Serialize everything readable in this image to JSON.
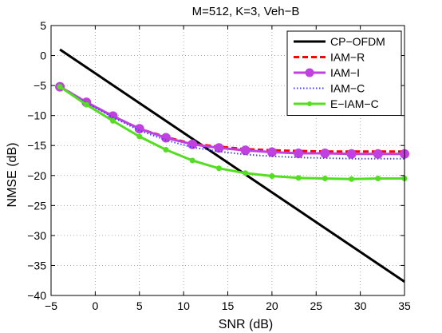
{
  "chart_data": {
    "type": "line",
    "title": "M=512, K=3, Veh−B",
    "xlabel": "SNR (dB)",
    "ylabel": "NMSE (dB)",
    "xlim": [
      -5,
      35
    ],
    "ylim": [
      -40,
      5
    ],
    "xticks": [
      -5,
      0,
      5,
      10,
      15,
      20,
      25,
      30,
      35
    ],
    "xtick_labels": [
      "−5",
      "0",
      "5",
      "10",
      "15",
      "20",
      "25",
      "30",
      "35"
    ],
    "yticks": [
      5,
      0,
      -5,
      -10,
      -15,
      -20,
      -25,
      -30,
      -35,
      -40
    ],
    "ytick_labels": [
      "5",
      "0",
      "−5",
      "−10",
      "−15",
      "−20",
      "−25",
      "−30",
      "−35",
      "−40"
    ],
    "grid": true,
    "legend_position": "top-right",
    "series": [
      {
        "name": "CP−OFDM",
        "color": "#000000",
        "style": "solid",
        "marker": "none",
        "x": [
          -4,
          35
        ],
        "y": [
          1,
          -37.7
        ]
      },
      {
        "name": "IAM−R",
        "color": "#ff0000",
        "style": "dashed",
        "marker": "none",
        "x": [
          -4,
          -1,
          2,
          5,
          8,
          11,
          14,
          17,
          20,
          23,
          26,
          29,
          32,
          35
        ],
        "y": [
          -5.2,
          -7.8,
          -10.1,
          -12.2,
          -13.6,
          -14.7,
          -15.2,
          -15.6,
          -15.8,
          -15.9,
          -16.0,
          -16.0,
          -16.0,
          -16.0
        ]
      },
      {
        "name": "IAM−I",
        "color": "#c040e0",
        "style": "solid",
        "marker": "circle",
        "x": [
          -4,
          -1,
          2,
          5,
          8,
          11,
          14,
          17,
          20,
          23,
          26,
          29,
          32,
          35
        ],
        "y": [
          -5.2,
          -7.8,
          -10.1,
          -12.2,
          -13.7,
          -14.8,
          -15.4,
          -15.8,
          -16.1,
          -16.3,
          -16.3,
          -16.4,
          -16.4,
          -16.4
        ]
      },
      {
        "name": "IAM−C",
        "color": "#4040ff",
        "style": "dotted",
        "marker": "none",
        "x": [
          -4,
          -1,
          2,
          5,
          8,
          11,
          14,
          17,
          20,
          23,
          26,
          29,
          32,
          35
        ],
        "y": [
          -5.2,
          -7.9,
          -10.3,
          -12.5,
          -14.1,
          -15.3,
          -16.0,
          -16.5,
          -16.8,
          -17.0,
          -17.1,
          -17.2,
          -17.2,
          -17.2
        ]
      },
      {
        "name": "E−IAM−C",
        "color": "#55dd22",
        "style": "solid",
        "marker": "dot",
        "x": [
          -4,
          -1,
          2,
          5,
          8,
          11,
          14,
          17,
          20,
          23,
          26,
          29,
          32,
          35
        ],
        "y": [
          -5.2,
          -8.2,
          -10.9,
          -13.5,
          -15.7,
          -17.5,
          -18.8,
          -19.6,
          -20.1,
          -20.4,
          -20.5,
          -20.6,
          -20.5,
          -20.5
        ]
      }
    ]
  }
}
